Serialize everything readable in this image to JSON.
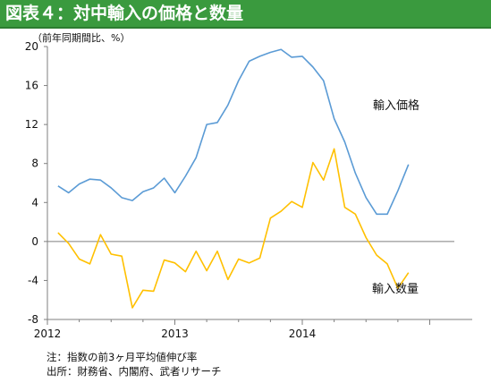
{
  "header": {
    "title": "図表４：対中輸入の価格と数量"
  },
  "notes": {
    "note": "注：指数の前3ヶ月平均値伸び率",
    "source": "出所：財務省、内閣府、武者リサーチ"
  },
  "chart_data": {
    "type": "line",
    "unit_label": "（前年同期間比、%）",
    "ylim": [
      -8,
      20
    ],
    "yticks": [
      "20",
      "16",
      "12",
      "8",
      "4",
      "0",
      "-4",
      "-8"
    ],
    "xlim": [
      0,
      40
    ],
    "xticks": [
      {
        "label": "2012",
        "month_index": 0
      },
      {
        "label": "2013",
        "month_index": 12
      },
      {
        "label": "2014",
        "month_index": 24
      }
    ],
    "colors": {
      "price": "#5b9bd5",
      "quantity": "#ffc000"
    },
    "series": [
      {
        "name": "輸入価格",
        "values": [
          5.7,
          5.0,
          5.9,
          6.4,
          6.3,
          5.5,
          4.5,
          4.2,
          5.1,
          5.5,
          6.5,
          5.0,
          6.7,
          8.6,
          12.0,
          12.2,
          14.0,
          16.5,
          18.5,
          19.0,
          19.4,
          19.7,
          18.9,
          19.0,
          17.9,
          16.5,
          12.6,
          10.2,
          7.0,
          4.5,
          2.8,
          2.8,
          5.2,
          7.9
        ]
      },
      {
        "name": "輸入数量",
        "values": [
          0.9,
          -0.2,
          -1.8,
          -2.3,
          0.7,
          -1.3,
          -1.5,
          -6.8,
          -5.0,
          -5.1,
          -1.9,
          -2.2,
          -3.1,
          -1.0,
          -3.0,
          -1.0,
          -3.9,
          -1.8,
          -2.2,
          -1.7,
          2.4,
          3.1,
          4.1,
          3.5,
          8.1,
          6.3,
          9.5,
          3.5,
          2.8,
          0.4,
          -1.4,
          -2.3,
          -4.8,
          -3.2
        ]
      }
    ],
    "grid": false,
    "legend": "inline labels"
  }
}
